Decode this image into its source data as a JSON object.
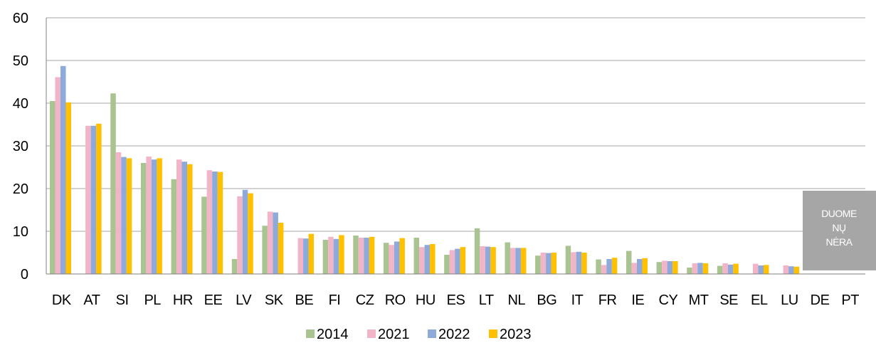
{
  "chart_data": {
    "type": "bar",
    "categories": [
      "DK",
      "AT",
      "SI",
      "PL",
      "HR",
      "EE",
      "LV",
      "SK",
      "BE",
      "FI",
      "CZ",
      "RO",
      "HU",
      "ES",
      "LT",
      "NL",
      "BG",
      "IT",
      "FR",
      "IE",
      "CY",
      "MT",
      "SE",
      "EL",
      "LU",
      "DE",
      "PT"
    ],
    "series": [
      {
        "name": "2014",
        "color": "#a9c490",
        "values": [
          40.5,
          null,
          42.3,
          26.0,
          22.2,
          18.1,
          3.5,
          11.3,
          null,
          8.0,
          9.0,
          7.3,
          8.5,
          4.5,
          10.7,
          7.4,
          4.3,
          6.6,
          3.4,
          5.4,
          2.8,
          1.5,
          1.9,
          null,
          null,
          null,
          null
        ]
      },
      {
        "name": "2021",
        "color": "#f2b5c8",
        "values": [
          46.1,
          34.7,
          28.5,
          27.5,
          26.8,
          24.3,
          18.2,
          14.6,
          8.4,
          8.7,
          8.5,
          6.8,
          6.3,
          5.6,
          6.5,
          6.1,
          5.0,
          5.1,
          2.1,
          2.6,
          3.1,
          2.5,
          2.5,
          2.4,
          2.0,
          null,
          null
        ]
      },
      {
        "name": "2022",
        "color": "#8eaadb",
        "values": [
          48.7,
          34.7,
          27.4,
          26.8,
          26.3,
          24.0,
          19.7,
          14.4,
          8.3,
          8.2,
          8.5,
          7.6,
          6.8,
          5.9,
          6.4,
          6.1,
          4.9,
          5.2,
          3.5,
          3.5,
          3.0,
          2.6,
          2.2,
          2.0,
          1.8,
          null,
          null
        ]
      },
      {
        "name": "2023",
        "color": "#ffc000",
        "values": [
          40.2,
          35.2,
          27.1,
          27.1,
          25.7,
          23.9,
          18.9,
          12.0,
          9.4,
          9.1,
          8.7,
          8.4,
          7.0,
          6.3,
          6.3,
          6.1,
          5.0,
          5.0,
          3.8,
          3.7,
          3.0,
          2.5,
          2.4,
          2.1,
          1.7,
          null,
          null
        ]
      }
    ],
    "y_ticks": [
      "0",
      "10",
      "20",
      "30",
      "40",
      "50",
      "60"
    ],
    "ylim": [
      0,
      60
    ],
    "grid": true,
    "legend": "bottom-center",
    "note": {
      "lines": [
        "DUOME",
        "NŲ",
        "NĖRA"
      ],
      "color": "#a6a6a6"
    }
  }
}
